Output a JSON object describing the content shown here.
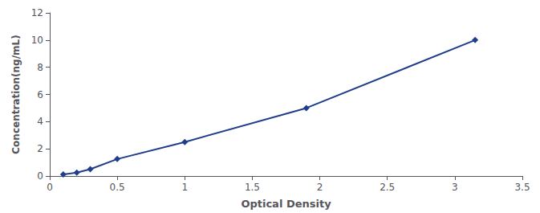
{
  "chart_data": {
    "type": "line",
    "xlabel": "Optical Density",
    "ylabel": "Concentration(ng/mL)",
    "x": [
      0.1,
      0.2,
      0.3,
      0.5,
      1.0,
      1.9,
      3.15
    ],
    "values": [
      0.125,
      0.25,
      0.5,
      1.25,
      2.5,
      5.0,
      10.0
    ],
    "color": "#1f3d8a",
    "marker": "diamond",
    "line_style": "solid",
    "xlim": [
      0,
      3.5
    ],
    "ylim": [
      0,
      12
    ],
    "xticks": [
      0,
      0.5,
      1,
      1.5,
      2,
      2.5,
      3,
      3.5
    ],
    "yticks": [
      0,
      2,
      4,
      6,
      8,
      10,
      12
    ],
    "grid": false
  }
}
